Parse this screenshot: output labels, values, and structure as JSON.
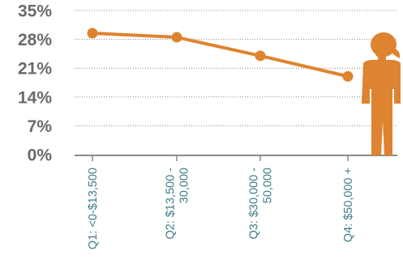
{
  "chart_data": {
    "type": "line",
    "categories": [
      [
        "Q1: <0-$13,500"
      ],
      [
        "Q2: $13,500 -",
        "30,000"
      ],
      [
        "Q3: $30,000 -",
        "50,000"
      ],
      [
        "Q4: $50,000 +"
      ]
    ],
    "series": [
      {
        "values": [
          29.5,
          28.5,
          24,
          19
        ]
      }
    ],
    "yticks": [
      "35%",
      "28%",
      "21%",
      "14%",
      "7%",
      "0%"
    ],
    "ytick_values": [
      35,
      28,
      21,
      14,
      7,
      0
    ],
    "ylim": [
      0,
      35
    ],
    "grid": "horizontal dotted",
    "legend": "none",
    "icon": "woman-figure-icon",
    "colors": {
      "line": "#de8430",
      "icon": "#de8430",
      "ytick_text": "#6a6a6a",
      "xtick_text": "#3f7d88",
      "axis": "#8a8a8a",
      "grid": "#888888"
    }
  }
}
